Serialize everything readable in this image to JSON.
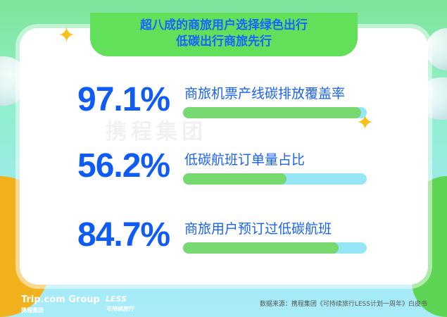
{
  "title": {
    "line1": "超八成的商旅用户选择绿色出行",
    "line2": "低碳出行商旅先行"
  },
  "watermark": "携程集团",
  "colors": {
    "accent_blue": "#0f5cf5",
    "bar_fill": "#76d86e",
    "bar_track": "#96e6f8"
  },
  "chart_data": {
    "type": "bar",
    "orientation": "horizontal",
    "categories": [
      "商旅机票产线碳排放覆盖率",
      "低碳航班订单量占比",
      "商旅用户预订过低碳航班"
    ],
    "values": [
      97.1,
      56.2,
      84.7
    ],
    "value_labels": [
      "97.1%",
      "56.2%",
      "84.7%"
    ],
    "xlim": [
      0,
      100
    ]
  },
  "footer": {
    "logo": "Trip.com Group",
    "logo_sub": "携程集团",
    "less_logo": "LESS",
    "less_sub": "可持续旅行",
    "source": "数据来源：携程集团《可持续旅行LESS计划一周年》白皮书"
  }
}
